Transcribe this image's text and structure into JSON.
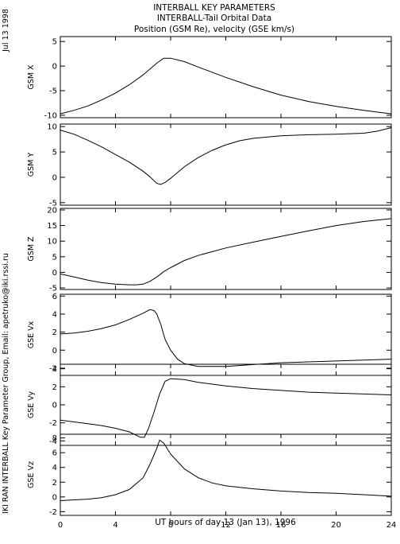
{
  "chart_data": {
    "type": "line",
    "title_lines": [
      "INTERBALL KEY PARAMETERS",
      "INTERBALL-Tail Orbital Data",
      "Position (GSM Re), velocity (GSE km/s)"
    ],
    "date_label": "Jul 13 1998",
    "side_label": "IKI RAN INTERBALL Key Parameter Group, Email: apetruko@iki.rssi.ru",
    "xlabel": "UT hours of day  13 (Jan 13), 1996",
    "xlim": [
      0,
      24
    ],
    "xticks": [
      0,
      4,
      8,
      12,
      16,
      20,
      24
    ],
    "xtick_labels": [
      "0",
      "4",
      "8",
      "12",
      "16",
      "20",
      "24"
    ],
    "panels": [
      {
        "ylabel": "GSM X",
        "ylim": [
          -10.5,
          6
        ],
        "yticks": [
          5,
          0,
          -5,
          -10
        ],
        "ytick_labels": [
          "5",
          "0",
          "-5",
          "-10"
        ],
        "points": [
          [
            0,
            -9.7
          ],
          [
            1,
            -9.0
          ],
          [
            2,
            -8.1
          ],
          [
            3,
            -6.9
          ],
          [
            4,
            -5.5
          ],
          [
            5,
            -3.8
          ],
          [
            6,
            -1.8
          ],
          [
            7,
            0.6
          ],
          [
            7.5,
            1.6
          ],
          [
            8,
            1.6
          ],
          [
            9,
            0.9
          ],
          [
            10,
            -0.2
          ],
          [
            12,
            -2.3
          ],
          [
            14,
            -4.2
          ],
          [
            16,
            -5.9
          ],
          [
            18,
            -7.2
          ],
          [
            20,
            -8.2
          ],
          [
            22,
            -9.0
          ],
          [
            24,
            -9.7
          ]
        ]
      },
      {
        "ylabel": "GSM Y",
        "ylim": [
          -5.5,
          10.5
        ],
        "yticks": [
          10,
          5,
          0,
          -5
        ],
        "ytick_labels": [
          "10",
          "5",
          "0",
          "-5"
        ],
        "points": [
          [
            0,
            9.3
          ],
          [
            1,
            8.5
          ],
          [
            2,
            7.3
          ],
          [
            3,
            6.0
          ],
          [
            4,
            4.5
          ],
          [
            5,
            3.0
          ],
          [
            6,
            1.2
          ],
          [
            6.5,
            0.1
          ],
          [
            7,
            -1.2
          ],
          [
            7.3,
            -1.4
          ],
          [
            7.6,
            -1.0
          ],
          [
            8,
            -0.2
          ],
          [
            9,
            2.1
          ],
          [
            10,
            3.9
          ],
          [
            11,
            5.3
          ],
          [
            12,
            6.4
          ],
          [
            13,
            7.2
          ],
          [
            14,
            7.7
          ],
          [
            16,
            8.2
          ],
          [
            18,
            8.4
          ],
          [
            20,
            8.5
          ],
          [
            22,
            8.7
          ],
          [
            23,
            9.1
          ],
          [
            24,
            9.8
          ]
        ]
      },
      {
        "ylabel": "GSM Z",
        "ylim": [
          -5.5,
          20.5
        ],
        "yticks": [
          20,
          15,
          10,
          5,
          0,
          -5
        ],
        "ytick_labels": [
          "20",
          "15",
          "10",
          "5",
          "0",
          "-5"
        ],
        "points": [
          [
            0,
            -0.5
          ],
          [
            1,
            -1.5
          ],
          [
            2,
            -2.5
          ],
          [
            3,
            -3.3
          ],
          [
            4,
            -3.8
          ],
          [
            5,
            -4.0
          ],
          [
            5.5,
            -4.0
          ],
          [
            6,
            -3.8
          ],
          [
            6.5,
            -2.9
          ],
          [
            7,
            -1.5
          ],
          [
            7.5,
            0.2
          ],
          [
            8,
            1.5
          ],
          [
            9,
            3.8
          ],
          [
            10,
            5.4
          ],
          [
            12,
            7.8
          ],
          [
            14,
            9.7
          ],
          [
            16,
            11.5
          ],
          [
            18,
            13.3
          ],
          [
            20,
            15.0
          ],
          [
            22,
            16.3
          ],
          [
            24,
            17.2
          ]
        ]
      },
      {
        "ylabel": "GSE Vx",
        "ylim": [
          -2.8,
          6.2
        ],
        "yticks": [
          6,
          4,
          2,
          0,
          -2
        ],
        "ytick_labels": [
          "6",
          "4",
          "2",
          "0",
          "-2"
        ],
        "points": [
          [
            0,
            1.8
          ],
          [
            1,
            1.9
          ],
          [
            2,
            2.1
          ],
          [
            3,
            2.4
          ],
          [
            4,
            2.8
          ],
          [
            5,
            3.4
          ],
          [
            6,
            4.1
          ],
          [
            6.5,
            4.5
          ],
          [
            6.8,
            4.4
          ],
          [
            7,
            4.0
          ],
          [
            7.3,
            2.8
          ],
          [
            7.6,
            1.2
          ],
          [
            8,
            0
          ],
          [
            8.5,
            -1.0
          ],
          [
            9,
            -1.5
          ],
          [
            10,
            -1.8
          ],
          [
            12,
            -1.8
          ],
          [
            14,
            -1.6
          ],
          [
            16,
            -1.4
          ],
          [
            18,
            -1.3
          ],
          [
            20,
            -1.2
          ],
          [
            22,
            -1.1
          ],
          [
            24,
            -1.0
          ]
        ]
      },
      {
        "ylabel": "GSE Vy",
        "ylim": [
          -4.5,
          4.5
        ],
        "yticks": [
          4,
          2,
          0,
          -2,
          -4
        ],
        "ytick_labels": [
          "4",
          "2",
          "0",
          "-2",
          "-4"
        ],
        "points": [
          [
            0,
            -1.7
          ],
          [
            1,
            -1.9
          ],
          [
            2,
            -2.1
          ],
          [
            3,
            -2.3
          ],
          [
            4,
            -2.6
          ],
          [
            5,
            -3.0
          ],
          [
            5.8,
            -3.6
          ],
          [
            6.1,
            -3.6
          ],
          [
            6.4,
            -2.6
          ],
          [
            6.8,
            -0.8
          ],
          [
            7.2,
            1.2
          ],
          [
            7.6,
            2.6
          ],
          [
            8,
            2.9
          ],
          [
            9,
            2.8
          ],
          [
            10,
            2.5
          ],
          [
            12,
            2.1
          ],
          [
            14,
            1.8
          ],
          [
            16,
            1.6
          ],
          [
            18,
            1.4
          ],
          [
            20,
            1.3
          ],
          [
            22,
            1.2
          ],
          [
            24,
            1.1
          ]
        ]
      },
      {
        "ylabel": "GSE Vz",
        "ylim": [
          -2.5,
          8.5
        ],
        "yticks": [
          8,
          6,
          4,
          2,
          0,
          -2
        ],
        "ytick_labels": [
          "8",
          "6",
          "4",
          "2",
          "0",
          "-2"
        ],
        "points": [
          [
            0,
            -0.5
          ],
          [
            1,
            -0.4
          ],
          [
            2,
            -0.3
          ],
          [
            3,
            -0.1
          ],
          [
            4,
            0.3
          ],
          [
            5,
            1.0
          ],
          [
            6,
            2.6
          ],
          [
            6.5,
            4.4
          ],
          [
            7,
            6.6
          ],
          [
            7.2,
            7.7
          ],
          [
            7.5,
            7.3
          ],
          [
            8,
            5.8
          ],
          [
            9,
            3.8
          ],
          [
            10,
            2.6
          ],
          [
            11,
            1.9
          ],
          [
            12,
            1.5
          ],
          [
            14,
            1.1
          ],
          [
            16,
            0.8
          ],
          [
            18,
            0.6
          ],
          [
            20,
            0.5
          ],
          [
            22,
            0.3
          ],
          [
            24,
            0.1
          ]
        ]
      }
    ]
  }
}
